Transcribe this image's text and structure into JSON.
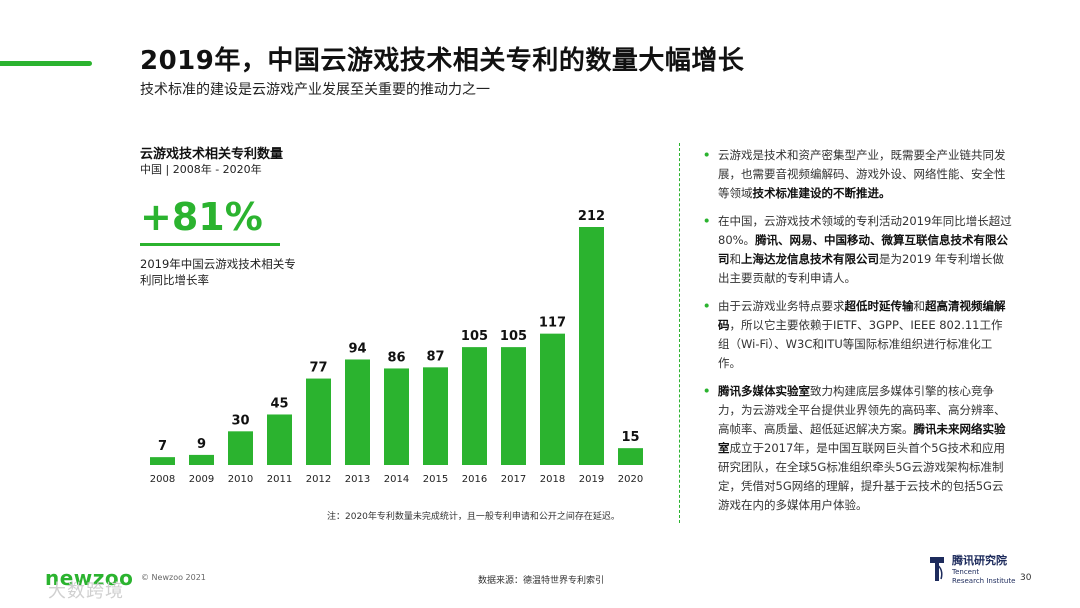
{
  "header": {
    "title": "2019年，中国云游戏技术相关专利的数量大幅增长",
    "subtitle": "技术标准的建设是云游戏产业发展至关重要的推动力之一"
  },
  "left_panel": {
    "chart_title": "云游戏技术相关专利数量",
    "chart_subtitle": "中国 | 2008年 - 2020年",
    "big_stat": "+81%",
    "stat_desc": "2019年中国云游戏技术相关专利同比增长率",
    "footnote": "注：2020年专利数量未完成统计，且一般专利申请和公开之间存在延迟。"
  },
  "chart_data": {
    "type": "bar",
    "title": "云游戏技术相关专利数量",
    "categories": [
      "2008",
      "2009",
      "2010",
      "2011",
      "2012",
      "2013",
      "2014",
      "2015",
      "2016",
      "2017",
      "2018",
      "2019",
      "2020"
    ],
    "values": [
      7,
      9,
      30,
      45,
      77,
      94,
      86,
      87,
      105,
      105,
      117,
      212,
      15
    ],
    "xlabel": "",
    "ylabel": "",
    "ylim": [
      0,
      212
    ],
    "color": "#2bb32f"
  },
  "bullets": [
    {
      "segments": [
        {
          "t": "云游戏是技术和资产密集型产业，既需要全产业链共同发展，也需要音视频编解码、游戏外设、网络性能、安全性等领域"
        },
        {
          "t": "技术标准建设的不断推进。",
          "b": true
        }
      ]
    },
    {
      "segments": [
        {
          "t": "在中国，云游戏技术领域的专利活动2019年同比增长超过80%。"
        },
        {
          "t": "腾讯、网易、中国移动、微算互联信息技术有限公司",
          "b": true
        },
        {
          "t": "和"
        },
        {
          "t": "上海达龙信息技术有限公司",
          "b": true
        },
        {
          "t": "是为2019 年专利增长做出主要贡献的专利申请人。"
        }
      ]
    },
    {
      "segments": [
        {
          "t": "由于云游戏业务特点要求"
        },
        {
          "t": "超低时延传输",
          "b": true
        },
        {
          "t": "和"
        },
        {
          "t": "超高清视频编解码",
          "b": true
        },
        {
          "t": "，所以它主要依赖于IETF、3GPP、IEEE 802.11工作组（Wi-Fi）、W3C和ITU等国际标准组织进行标准化工作。"
        }
      ]
    },
    {
      "segments": [
        {
          "t": "腾讯多媒体实验室",
          "b": true
        },
        {
          "t": "致力构建底层多媒体引擎的核心竞争力，为云游戏全平台提供业界领先的高码率、高分辨率、高帧率、高质量、超低延迟解决方案。"
        },
        {
          "t": "腾讯未来网络实验室",
          "b": true
        },
        {
          "t": "成立于2017年，是中国互联网巨头首个5G技术和应用研究团队，在全球5G标准组织牵头5G云游戏架构标准制定，凭借对5G网络的理解，提升基于云技术的包括5G云游戏在内的多媒体用户体验。"
        }
      ]
    }
  ],
  "footer": {
    "brand": "newzoo",
    "copyright": "© Newzoo 2021",
    "watermark": "大数跨境",
    "source": "数据来源：德温特世界专利索引",
    "tencent_cn": "腾讯研究院",
    "tencent_en1": "Tencent",
    "tencent_en2": "Research Institute",
    "page": "30"
  }
}
